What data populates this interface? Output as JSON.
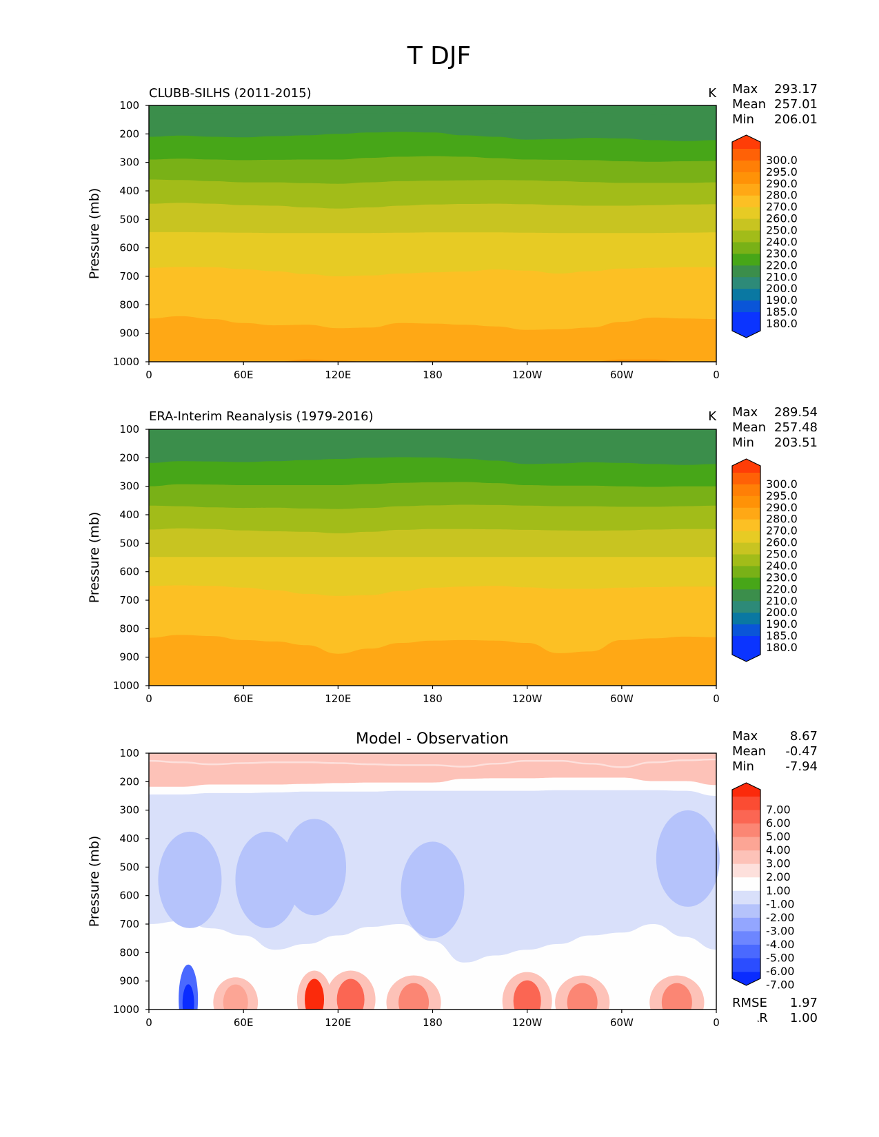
{
  "figure": {
    "title": "T DJF"
  },
  "axes": {
    "ylabel": "Pressure (mb)",
    "yticks": [
      "100",
      "200",
      "300",
      "400",
      "500",
      "600",
      "700",
      "800",
      "900",
      "1000"
    ],
    "xticks": [
      "0",
      "60E",
      "120E",
      "180",
      "120W",
      "60W",
      "0"
    ]
  },
  "colors": {
    "temperature_levels": [
      "#0b34ff",
      "#0a55d8",
      "#0a78a2",
      "#2d8a78",
      "#3b8e4b",
      "#47a618",
      "#79b117",
      "#a2bc19",
      "#c8c421",
      "#e7cb24",
      "#fcc024",
      "#ffa815",
      "#ff9207",
      "#ff7f06",
      "#ff6106",
      "#ff3d07"
    ],
    "difference_levels": [
      "#0a2cff",
      "#2b4dff",
      "#4a69ff",
      "#6d86ff",
      "#93a6ff",
      "#b5c3fb",
      "#d9e0fa",
      "#fefefe",
      "#fde0dc",
      "#fdc2b8",
      "#fca595",
      "#fb8674",
      "#fb6653",
      "#fb4c33",
      "#fb2a0b"
    ]
  },
  "chart_data": [
    {
      "type": "heatmap",
      "panel": "model",
      "title": "CLUBB-SILHS (2011-2015)",
      "units": "K",
      "stats": {
        "max_label": "Max",
        "max": "293.17",
        "mean_label": "Mean",
        "mean": "257.01",
        "min_label": "Min",
        "min": "206.01"
      },
      "xlabel": "",
      "ylabel": "Pressure (mb)",
      "x_range": [
        0,
        360
      ],
      "y_range": [
        100,
        1000
      ],
      "colorbar_levels": [
        "180.0",
        "185.0",
        "190.0",
        "200.0",
        "210.0",
        "220.0",
        "230.0",
        "240.0",
        "250.0",
        "260.0",
        "270.0",
        "280.0",
        "290.0",
        "295.0",
        "300.0"
      ],
      "boundaries_description": "pressure (mb) of color-band boundaries vs longitude",
      "longitudes": [
        0,
        20,
        40,
        60,
        80,
        100,
        120,
        140,
        160,
        180,
        200,
        220,
        240,
        260,
        280,
        300,
        320,
        340,
        360
      ],
      "boundaries": [
        {
          "level": "210",
          "p": [
            130,
            128,
            128,
            127,
            127,
            127,
            127,
            127,
            128,
            129,
            130,
            128,
            125,
            124,
            126,
            129,
            133,
            131,
            130
          ]
        },
        {
          "level": "220",
          "p": [
            210,
            206,
            210,
            212,
            208,
            205,
            200,
            195,
            193,
            195,
            205,
            210,
            220,
            218,
            214,
            216,
            222,
            225,
            222
          ]
        },
        {
          "level": "230",
          "p": [
            290,
            287,
            290,
            292,
            291,
            290,
            290,
            284,
            280,
            278,
            280,
            285,
            290,
            291,
            292,
            296,
            298,
            296,
            295
          ]
        },
        {
          "level": "240",
          "p": [
            360,
            362,
            366,
            370,
            370,
            373,
            375,
            370,
            366,
            364,
            363,
            362,
            363,
            366,
            369,
            372,
            372,
            372,
            370
          ]
        },
        {
          "level": "250",
          "p": [
            445,
            442,
            445,
            450,
            452,
            458,
            462,
            458,
            452,
            448,
            446,
            445,
            447,
            450,
            452,
            452,
            450,
            448,
            447
          ]
        },
        {
          "level": "260",
          "p": [
            545,
            545,
            546,
            547,
            548,
            548,
            548,
            548,
            547,
            546,
            546,
            546,
            547,
            548,
            548,
            548,
            548,
            547,
            546
          ]
        },
        {
          "level": "270",
          "p": [
            670,
            667,
            668,
            675,
            682,
            692,
            700,
            697,
            690,
            686,
            683,
            676,
            680,
            690,
            682,
            673,
            670,
            668,
            668
          ]
        },
        {
          "level": "280",
          "p": [
            848,
            840,
            850,
            864,
            872,
            870,
            882,
            880,
            864,
            866,
            870,
            876,
            888,
            886,
            880,
            860,
            845,
            848,
            850
          ]
        },
        {
          "level": "290",
          "p": [
            1000,
            1000,
            1000,
            1000,
            1000,
            992,
            996,
            1000,
            1000,
            995,
            995,
            996,
            1000,
            1000,
            1000,
            992,
            992,
            1000,
            1000
          ]
        }
      ]
    },
    {
      "type": "heatmap",
      "panel": "observation",
      "title": "ERA-Interim Reanalysis (1979-2016)",
      "units": "K",
      "stats": {
        "max_label": "Max",
        "max": "289.54",
        "mean_label": "Mean",
        "mean": "257.48",
        "min_label": "Min",
        "min": "203.51"
      },
      "xlabel": "",
      "ylabel": "Pressure (mb)",
      "x_range": [
        0,
        360
      ],
      "y_range": [
        100,
        1000
      ],
      "colorbar_levels": [
        "180.0",
        "185.0",
        "190.0",
        "200.0",
        "210.0",
        "220.0",
        "230.0",
        "240.0",
        "250.0",
        "260.0",
        "270.0",
        "280.0",
        "290.0",
        "295.0",
        "300.0"
      ],
      "longitudes": [
        0,
        20,
        40,
        60,
        80,
        100,
        120,
        140,
        160,
        180,
        200,
        220,
        240,
        260,
        280,
        300,
        320,
        340,
        360
      ],
      "boundaries": [
        {
          "level": "210",
          "p": [
            138,
            136,
            136,
            136,
            136,
            136,
            136,
            136,
            136,
            137,
            138,
            137,
            136,
            136,
            136,
            137,
            138,
            138,
            138
          ]
        },
        {
          "level": "220",
          "p": [
            218,
            212,
            213,
            215,
            212,
            208,
            204,
            200,
            198,
            199,
            203,
            210,
            222,
            220,
            216,
            218,
            222,
            225,
            222
          ]
        },
        {
          "level": "230",
          "p": [
            300,
            293,
            294,
            296,
            296,
            296,
            296,
            292,
            288,
            286,
            285,
            289,
            296,
            298,
            298,
            300,
            302,
            300,
            300
          ]
        },
        {
          "level": "240",
          "p": [
            368,
            370,
            374,
            376,
            375,
            378,
            380,
            376,
            370,
            367,
            365,
            366,
            368,
            370,
            370,
            372,
            372,
            370,
            368
          ]
        },
        {
          "level": "250",
          "p": [
            452,
            448,
            450,
            455,
            458,
            460,
            465,
            460,
            453,
            450,
            450,
            451,
            453,
            455,
            456,
            455,
            452,
            450,
            450
          ]
        },
        {
          "level": "260",
          "p": [
            548,
            548,
            548,
            548,
            548,
            548,
            548,
            548,
            548,
            548,
            548,
            548,
            548,
            548,
            548,
            548,
            548,
            548,
            548
          ]
        },
        {
          "level": "270",
          "p": [
            650,
            648,
            650,
            656,
            665,
            678,
            685,
            682,
            668,
            656,
            652,
            650,
            655,
            660,
            660,
            656,
            654,
            652,
            652
          ]
        },
        {
          "level": "280",
          "p": [
            832,
            822,
            826,
            840,
            845,
            858,
            888,
            870,
            850,
            842,
            840,
            842,
            850,
            886,
            880,
            840,
            834,
            828,
            830
          ]
        }
      ]
    },
    {
      "type": "heatmap",
      "panel": "difference",
      "title": "Model - Observation",
      "stats": {
        "max_label": "Max",
        "max": "8.67",
        "mean_label": "Mean",
        "mean": "-0.47",
        "min_label": "Min",
        "min": "-7.94"
      },
      "metrics": {
        "rmse_label": "RMSE",
        "rmse": "1.97",
        "corr_label": "CORR",
        "corr": "1.00"
      },
      "xlabel": "",
      "ylabel": "Pressure (mb)",
      "x_range": [
        0,
        360
      ],
      "y_range": [
        100,
        1000
      ],
      "colorbar_levels": [
        "-7.00",
        "-6.00",
        "-5.00",
        "-4.00",
        "-3.00",
        "-2.00",
        "-1.00",
        "1.00",
        "2.00",
        "3.00",
        "4.00",
        "5.00",
        "6.00",
        "7.00"
      ],
      "longitudes": [
        0,
        20,
        40,
        60,
        80,
        100,
        120,
        140,
        160,
        180,
        200,
        220,
        240,
        260,
        280,
        300,
        320,
        340,
        360
      ],
      "bands": {
        "warm_upper_edge": [
          130,
          135,
          142,
          138,
          135,
          135,
          138,
          142,
          145,
          145,
          150,
          140,
          130,
          130,
          140,
          152,
          135,
          128,
          125
        ],
        "white_top": [
          218,
          218,
          210,
          210,
          210,
          208,
          205,
          203,
          203,
          203,
          190,
          188,
          188,
          186,
          186,
          186,
          198,
          198,
          212
        ],
        "white_bottom": [
          245,
          245,
          240,
          240,
          238,
          235,
          235,
          235,
          232,
          232,
          232,
          232,
          232,
          230,
          230,
          230,
          230,
          232,
          250
        ],
        "neutral_top": [
          700,
          690,
          715,
          740,
          790,
          770,
          740,
          710,
          700,
          760,
          835,
          810,
          790,
          770,
          740,
          730,
          700,
          745,
          790
        ]
      },
      "cold_blobs": [
        {
          "lon": 26,
          "p": 545,
          "level": "-2"
        },
        {
          "lon": 75,
          "p": 545,
          "level": "-2"
        },
        {
          "lon": 105,
          "p": 500,
          "level": "-2"
        },
        {
          "lon": 180,
          "p": 580,
          "level": "-2"
        },
        {
          "lon": 342,
          "p": 470,
          "level": "-2"
        },
        {
          "lon": 25,
          "p": 963,
          "level": "-5"
        }
      ],
      "warm_blobs": [
        {
          "lon": 55,
          "p": 975,
          "level": "3"
        },
        {
          "lon": 105,
          "p": 965,
          "level": "7"
        },
        {
          "lon": 128,
          "p": 965,
          "level": "5"
        },
        {
          "lon": 168,
          "p": 975,
          "level": "4"
        },
        {
          "lon": 240,
          "p": 970,
          "level": "5"
        },
        {
          "lon": 275,
          "p": 975,
          "level": "4"
        },
        {
          "lon": 335,
          "p": 975,
          "level": "4"
        }
      ]
    }
  ]
}
